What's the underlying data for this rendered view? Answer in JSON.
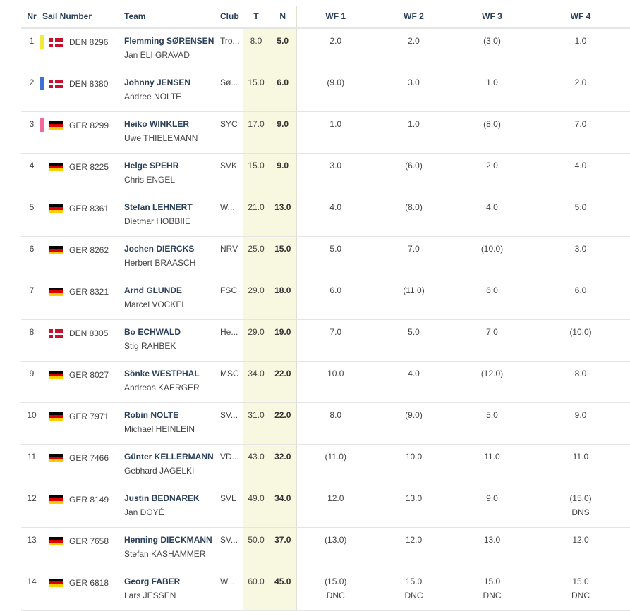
{
  "headers": {
    "nr": "Nr",
    "sail": "Sail Number",
    "team": "Team",
    "club": "Club",
    "t": "T",
    "n": "N",
    "races": [
      "WF 1",
      "WF 2",
      "WF 3",
      "WF 4"
    ]
  },
  "colors": {
    "yellow_marker": "#f2ea3a",
    "blue_marker": "#3b6fd6",
    "pink_marker": "#f06a9e",
    "header_text": "#2a3f5a",
    "highlight_column": "#f8f8e0"
  },
  "rows": [
    {
      "nr": "1",
      "marker": "yellow",
      "flag": "den",
      "sail": "DEN 8296",
      "skipper": "Flemming SØRENSEN",
      "crew": "Jan ELI GRAVAD",
      "club": "Tro...",
      "t": "8.0",
      "n": "5.0",
      "races": [
        {
          "v": "2.0",
          "c": ""
        },
        {
          "v": "2.0",
          "c": ""
        },
        {
          "v": "(3.0)",
          "c": ""
        },
        {
          "v": "1.0",
          "c": ""
        }
      ]
    },
    {
      "nr": "2",
      "marker": "blue",
      "flag": "den",
      "sail": "DEN 8380",
      "skipper": "Johnny JENSEN",
      "crew": "Andree NOLTE",
      "club": "Sø...",
      "t": "15.0",
      "n": "6.0",
      "races": [
        {
          "v": "(9.0)",
          "c": ""
        },
        {
          "v": "3.0",
          "c": ""
        },
        {
          "v": "1.0",
          "c": ""
        },
        {
          "v": "2.0",
          "c": ""
        }
      ]
    },
    {
      "nr": "3",
      "marker": "pink",
      "flag": "ger",
      "sail": "GER 8299",
      "skipper": "Heiko WINKLER",
      "crew": "Uwe THIELEMANN",
      "club": "SYC",
      "t": "17.0",
      "n": "9.0",
      "races": [
        {
          "v": "1.0",
          "c": ""
        },
        {
          "v": "1.0",
          "c": ""
        },
        {
          "v": "(8.0)",
          "c": ""
        },
        {
          "v": "7.0",
          "c": ""
        }
      ]
    },
    {
      "nr": "4",
      "marker": "none",
      "flag": "ger",
      "sail": "GER 8225",
      "skipper": "Helge SPEHR",
      "crew": "Chris ENGEL",
      "club": "SVK",
      "t": "15.0",
      "n": "9.0",
      "races": [
        {
          "v": "3.0",
          "c": ""
        },
        {
          "v": "(6.0)",
          "c": ""
        },
        {
          "v": "2.0",
          "c": ""
        },
        {
          "v": "4.0",
          "c": ""
        }
      ]
    },
    {
      "nr": "5",
      "marker": "none",
      "flag": "ger",
      "sail": "GER 8361",
      "skipper": "Stefan LEHNERT",
      "crew": "Dietmar HOBBIIE",
      "club": "W...",
      "t": "21.0",
      "n": "13.0",
      "races": [
        {
          "v": "4.0",
          "c": ""
        },
        {
          "v": "(8.0)",
          "c": ""
        },
        {
          "v": "4.0",
          "c": ""
        },
        {
          "v": "5.0",
          "c": ""
        }
      ]
    },
    {
      "nr": "6",
      "marker": "none",
      "flag": "ger",
      "sail": "GER 8262",
      "skipper": "Jochen DIERCKS",
      "crew": "Herbert BRAASCH",
      "club": "NRV",
      "t": "25.0",
      "n": "15.0",
      "races": [
        {
          "v": "5.0",
          "c": ""
        },
        {
          "v": "7.0",
          "c": ""
        },
        {
          "v": "(10.0)",
          "c": ""
        },
        {
          "v": "3.0",
          "c": ""
        }
      ]
    },
    {
      "nr": "7",
      "marker": "none",
      "flag": "ger",
      "sail": "GER 8321",
      "skipper": "Arnd GLUNDE",
      "crew": "Marcel VOCKEL",
      "club": "FSC",
      "t": "29.0",
      "n": "18.0",
      "races": [
        {
          "v": "6.0",
          "c": ""
        },
        {
          "v": "(11.0)",
          "c": ""
        },
        {
          "v": "6.0",
          "c": ""
        },
        {
          "v": "6.0",
          "c": ""
        }
      ]
    },
    {
      "nr": "8",
      "marker": "none",
      "flag": "den",
      "sail": "DEN 8305",
      "skipper": "Bo ECHWALD",
      "crew": "Stig RAHBEK",
      "club": "He...",
      "t": "29.0",
      "n": "19.0",
      "races": [
        {
          "v": "7.0",
          "c": ""
        },
        {
          "v": "5.0",
          "c": ""
        },
        {
          "v": "7.0",
          "c": ""
        },
        {
          "v": "(10.0)",
          "c": ""
        }
      ]
    },
    {
      "nr": "9",
      "marker": "none",
      "flag": "ger",
      "sail": "GER 8027",
      "skipper": "Sönke WESTPHAL",
      "crew": "Andreas KAERGER",
      "club": "MSC",
      "t": "34.0",
      "n": "22.0",
      "races": [
        {
          "v": "10.0",
          "c": ""
        },
        {
          "v": "4.0",
          "c": ""
        },
        {
          "v": "(12.0)",
          "c": ""
        },
        {
          "v": "8.0",
          "c": ""
        }
      ]
    },
    {
      "nr": "10",
      "marker": "none",
      "flag": "ger",
      "sail": "GER 7971",
      "skipper": "Robin NOLTE",
      "crew": "Michael HEINLEIN",
      "club": "SV...",
      "t": "31.0",
      "n": "22.0",
      "races": [
        {
          "v": "8.0",
          "c": ""
        },
        {
          "v": "(9.0)",
          "c": ""
        },
        {
          "v": "5.0",
          "c": ""
        },
        {
          "v": "9.0",
          "c": ""
        }
      ]
    },
    {
      "nr": "11",
      "marker": "none",
      "flag": "ger",
      "sail": "GER 7466",
      "skipper": "Günter KELLERMANN",
      "crew": "Gebhard JAGELKI",
      "club": "VD...",
      "t": "43.0",
      "n": "32.0",
      "races": [
        {
          "v": "(11.0)",
          "c": ""
        },
        {
          "v": "10.0",
          "c": ""
        },
        {
          "v": "11.0",
          "c": ""
        },
        {
          "v": "11.0",
          "c": ""
        }
      ]
    },
    {
      "nr": "12",
      "marker": "none",
      "flag": "ger",
      "sail": "GER 8149",
      "skipper": "Justin BEDNAREK",
      "crew": "Jan DOYÉ",
      "club": "SVL",
      "t": "49.0",
      "n": "34.0",
      "races": [
        {
          "v": "12.0",
          "c": ""
        },
        {
          "v": "13.0",
          "c": ""
        },
        {
          "v": "9.0",
          "c": ""
        },
        {
          "v": "(15.0)",
          "c": "DNS"
        }
      ]
    },
    {
      "nr": "13",
      "marker": "none",
      "flag": "ger",
      "sail": "GER 7658",
      "skipper": "Henning DIECKMANN",
      "crew": "Stefan KÄSHAMMER",
      "club": "SV...",
      "t": "50.0",
      "n": "37.0",
      "races": [
        {
          "v": "(13.0)",
          "c": ""
        },
        {
          "v": "12.0",
          "c": ""
        },
        {
          "v": "13.0",
          "c": ""
        },
        {
          "v": "12.0",
          "c": ""
        }
      ]
    },
    {
      "nr": "14",
      "marker": "none",
      "flag": "ger",
      "sail": "GER 6818",
      "skipper": "Georg FABER",
      "crew": "Lars JESSEN",
      "club": "W...",
      "t": "60.0",
      "n": "45.0",
      "races": [
        {
          "v": "(15.0)",
          "c": "DNC"
        },
        {
          "v": "15.0",
          "c": "DNC"
        },
        {
          "v": "15.0",
          "c": "DNC"
        },
        {
          "v": "15.0",
          "c": "DNC"
        }
      ]
    }
  ]
}
